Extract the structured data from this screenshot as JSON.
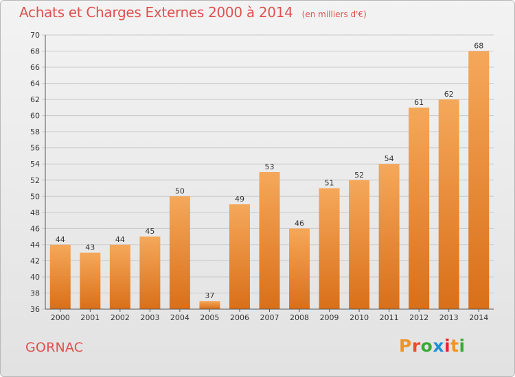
{
  "header": {
    "title": "Achats et Charges Externes 2000 à 2014",
    "subtitle": "(en milliers d'€)"
  },
  "footer": {
    "commune": "GORNAC",
    "logo_text": "Proxiti",
    "logo_colors": [
      "#f39325",
      "#e84e30",
      "#3aa935",
      "#1d8fd6",
      "#e8212f",
      "#f39325",
      "#3aa935"
    ]
  },
  "colors": {
    "title": "#e0504f",
    "bar_top": "#f5a85a",
    "bar_bottom": "#d96f19",
    "grid": "#c8c8c8"
  },
  "chart_data": {
    "type": "bar",
    "title": "Achats et Charges Externes 2000 à 2014",
    "subtitle": "(en milliers d'€)",
    "categories": [
      "2000",
      "2001",
      "2002",
      "2003",
      "2004",
      "2005",
      "2006",
      "2007",
      "2008",
      "2009",
      "2010",
      "2011",
      "2012",
      "2013",
      "2014"
    ],
    "values": [
      44,
      43,
      44,
      45,
      50,
      37,
      49,
      53,
      46,
      51,
      52,
      54,
      61,
      62,
      68
    ],
    "ylim": [
      36,
      70
    ],
    "yticks": [
      36,
      38,
      40,
      42,
      44,
      46,
      48,
      50,
      52,
      54,
      56,
      58,
      60,
      62,
      64,
      66,
      68,
      70
    ],
    "grid": true,
    "data_labels": true
  }
}
